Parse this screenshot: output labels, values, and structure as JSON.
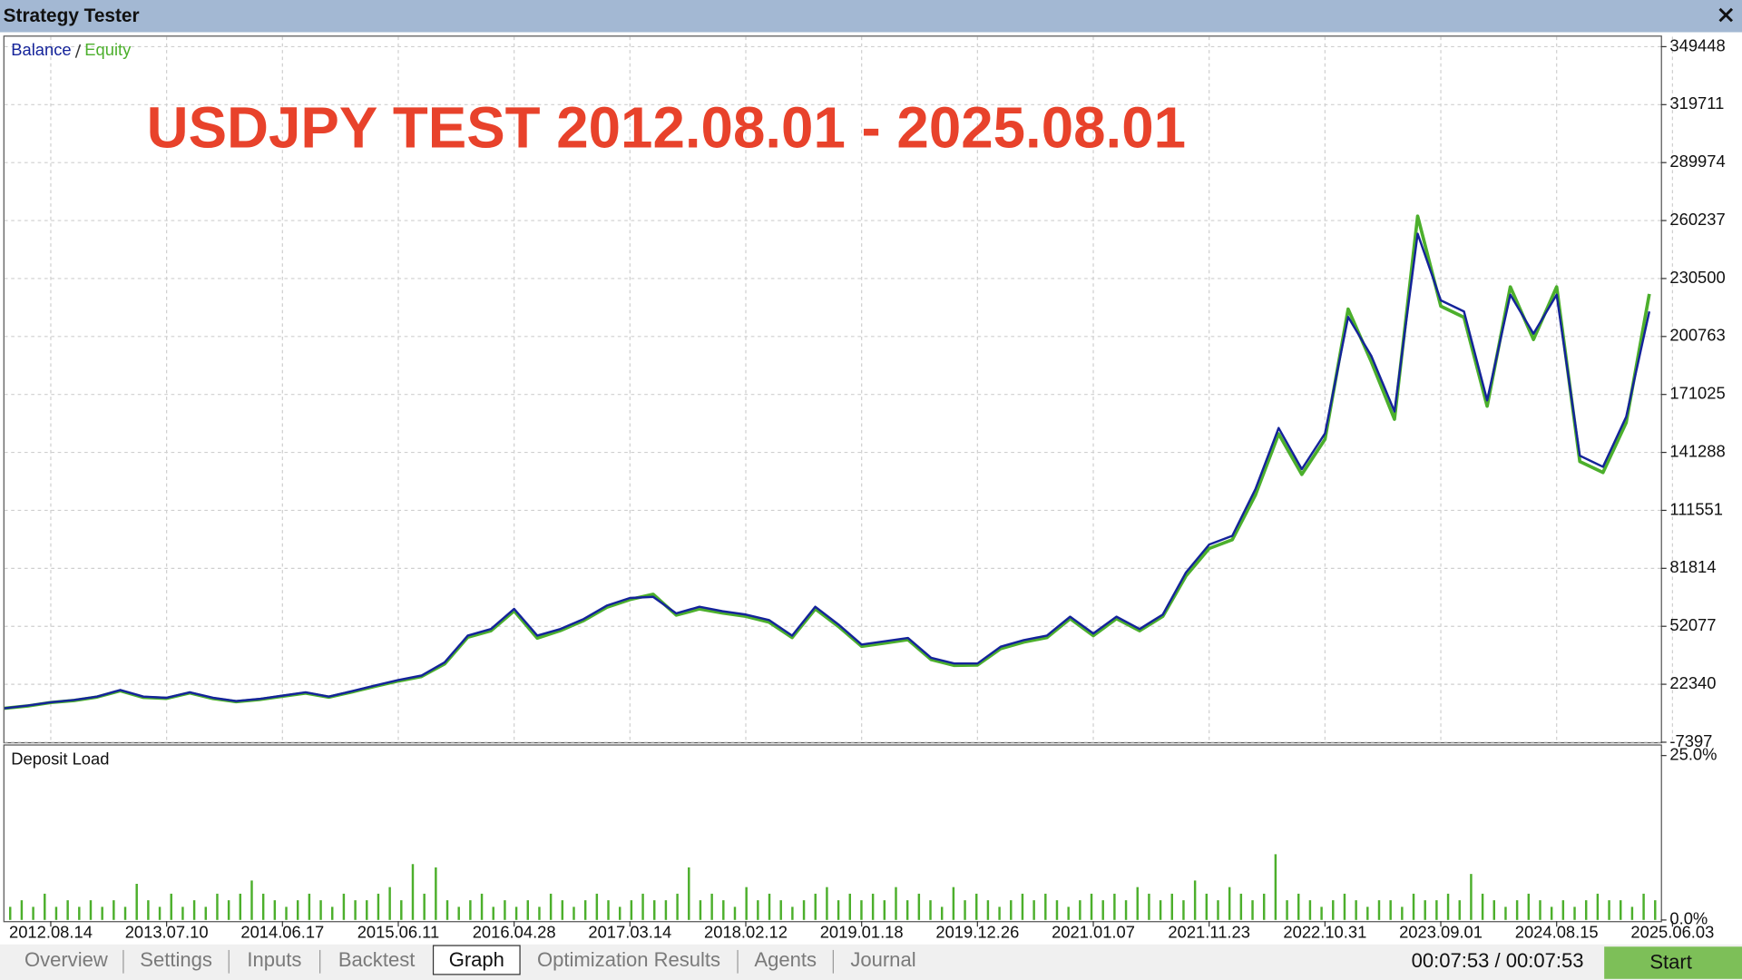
{
  "window": {
    "title": "Strategy Tester"
  },
  "chart_data": [
    {
      "type": "line",
      "annotation": "USDJPY TEST 2012.08.01 - 2025.08.01",
      "series": [
        {
          "name": "Balance",
          "color": "#14239a",
          "values": [
            10000,
            11400,
            13100,
            14250,
            16000,
            19400,
            16000,
            15400,
            18200,
            15400,
            13700,
            14800,
            16500,
            18200,
            16000,
            18800,
            21700,
            24500,
            26800,
            33600,
            47300,
            50700,
            61000,
            47300,
            50700,
            55800,
            62700,
            66600,
            67200,
            58700,
            62100,
            59800,
            58100,
            55300,
            47300,
            62100,
            53000,
            42700,
            44400,
            46100,
            35900,
            33000,
            33000,
            41600,
            45000,
            47300,
            57000,
            48400,
            57000,
            50700,
            58100,
            79700,
            94000,
            98500,
            122500,
            153800,
            132700,
            151000,
            210800,
            190800,
            162300,
            253500,
            219300,
            213600,
            168000,
            222200,
            202200,
            222200,
            139600,
            133900,
            159500,
            213600
          ]
        },
        {
          "name": "Equity",
          "color": "#4caf2c",
          "values": [
            10000,
            11200,
            13000,
            14000,
            15800,
            19000,
            15600,
            15100,
            17900,
            15000,
            13400,
            14500,
            16200,
            17800,
            15700,
            18400,
            21300,
            24000,
            26300,
            32800,
            46500,
            49800,
            60000,
            46000,
            49900,
            55000,
            61800,
            65800,
            68500,
            57800,
            61000,
            58900,
            57200,
            54200,
            46300,
            61000,
            52000,
            41800,
            43500,
            45200,
            35000,
            32000,
            32200,
            40600,
            44000,
            46300,
            56000,
            47300,
            56000,
            49800,
            57200,
            77900,
            92000,
            96500,
            119500,
            150800,
            130000,
            148000,
            214800,
            187800,
            158300,
            262500,
            216300,
            210600,
            165000,
            226200,
            199200,
            226200,
            136600,
            131000,
            156500,
            222600
          ]
        }
      ],
      "xlim": [
        0,
        71.5
      ],
      "xticks": [
        {
          "value": 2,
          "label": "2012.08.14"
        },
        {
          "value": 7,
          "label": "2013.07.10"
        },
        {
          "value": 12,
          "label": "2014.06.17"
        },
        {
          "value": 17,
          "label": "2015.06.11"
        },
        {
          "value": 22,
          "label": "2016.04.28"
        },
        {
          "value": 27,
          "label": "2017.03.14"
        },
        {
          "value": 32,
          "label": "2018.02.12"
        },
        {
          "value": 37,
          "label": "2019.01.18"
        },
        {
          "value": 42,
          "label": "2019.12.26"
        },
        {
          "value": 47,
          "label": "2021.01.07"
        },
        {
          "value": 52,
          "label": "2021.11.23"
        },
        {
          "value": 57,
          "label": "2022.10.31"
        },
        {
          "value": 62,
          "label": "2023.09.01"
        },
        {
          "value": 67,
          "label": "2024.08.15"
        },
        {
          "value": 72,
          "label": "2025.06.03"
        }
      ],
      "ylim": [
        -7397,
        349448
      ],
      "yticks": [
        -7397,
        22340,
        52077,
        81814,
        111551,
        141288,
        171025,
        200763,
        230500,
        260237,
        289974,
        319711,
        349448
      ],
      "grid": true
    },
    {
      "type": "bar",
      "title": "Deposit Load",
      "color": "#4caf2c",
      "values": [
        2,
        3,
        2,
        4,
        2,
        3,
        2,
        3,
        2,
        3,
        2,
        5.5,
        3,
        2,
        4,
        2,
        3,
        2,
        4,
        3,
        4,
        6,
        4,
        3,
        2,
        3,
        4,
        3,
        2,
        4,
        3,
        3,
        4,
        5,
        3,
        8.5,
        4,
        8,
        3,
        2,
        3,
        4,
        2,
        3,
        2,
        3,
        2,
        4,
        3,
        2,
        3,
        4,
        3,
        2,
        3,
        4,
        3,
        3,
        4,
        8,
        3,
        4,
        3,
        2,
        5,
        3,
        4,
        3,
        2,
        3,
        4,
        5,
        3,
        4,
        3,
        4,
        3,
        5,
        3,
        4,
        3,
        2,
        5,
        3,
        4,
        3,
        2,
        3,
        4,
        3,
        4,
        3,
        2,
        3,
        4,
        3,
        4,
        3,
        5,
        4,
        3,
        4,
        3,
        6,
        4,
        3,
        5,
        4,
        3,
        4,
        10,
        3,
        4,
        3,
        2,
        3,
        4,
        3,
        2,
        3,
        3,
        2,
        4,
        3,
        3,
        4,
        3,
        7,
        4,
        3,
        2,
        3,
        4,
        3,
        2,
        3,
        2,
        3,
        4,
        3,
        3,
        2,
        4,
        3
      ],
      "ylim": [
        0,
        25
      ],
      "yticks": [
        {
          "value": 0,
          "label": "0.0%"
        },
        {
          "value": 25,
          "label": "25.0%"
        }
      ]
    }
  ],
  "tabs": [
    "Overview",
    "Settings",
    "Inputs",
    "Backtest",
    "Graph",
    "Optimization Results",
    "Agents",
    "Journal"
  ],
  "active_tab": 4,
  "status": {
    "timer": "00:07:53 / 00:07:53",
    "start_button": "Start"
  }
}
